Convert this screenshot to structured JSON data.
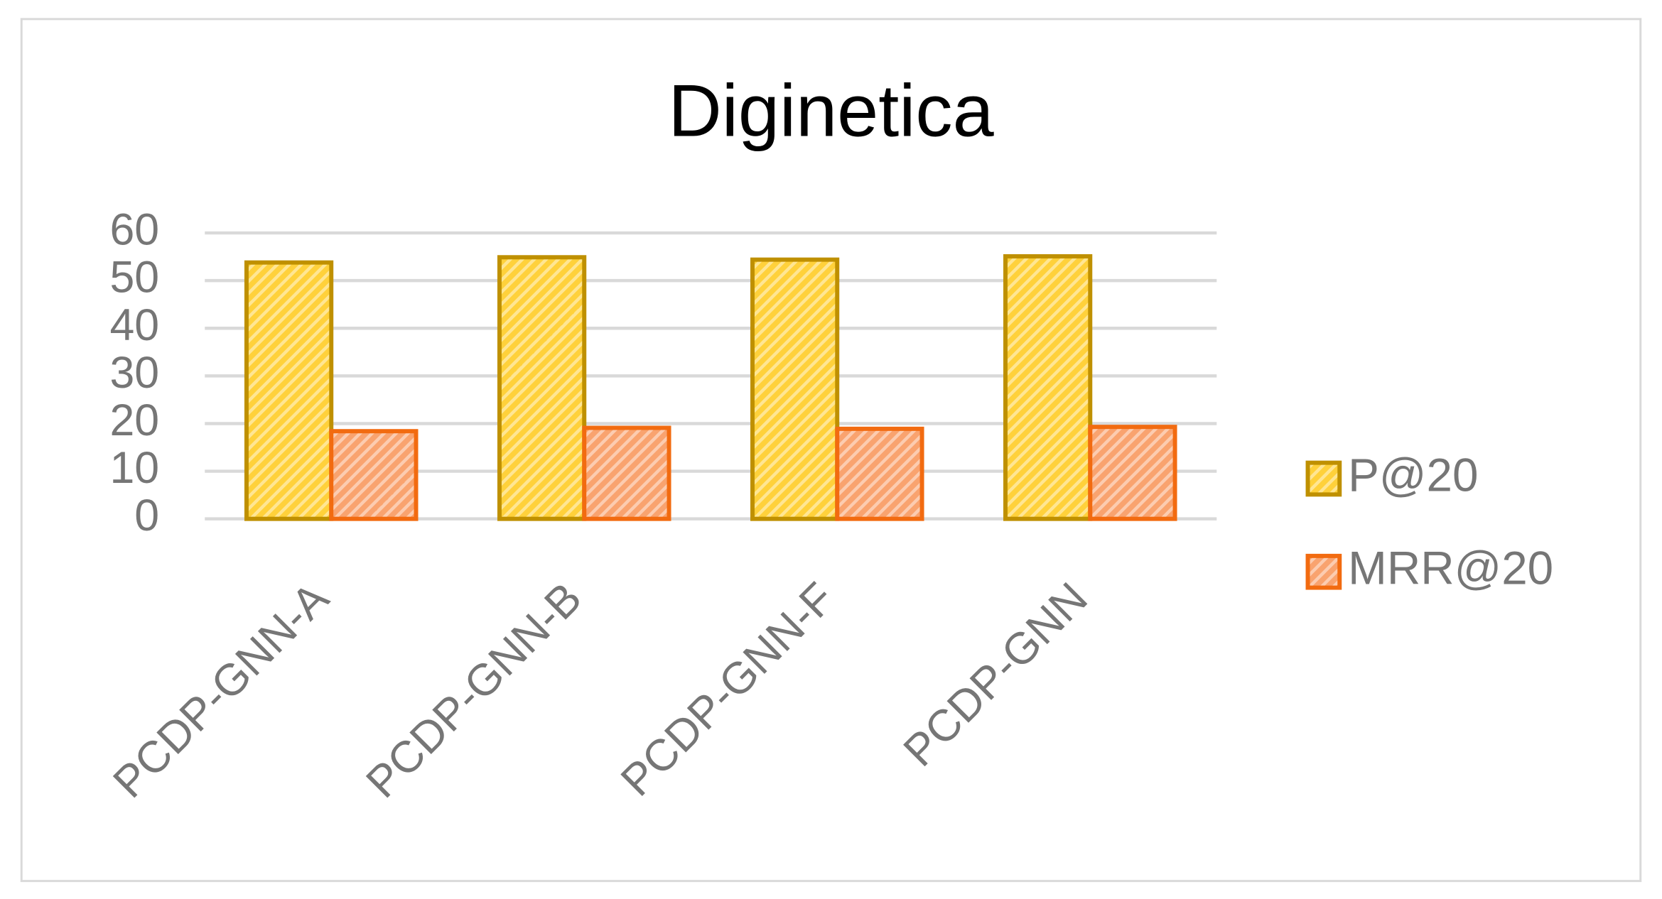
{
  "chart_data": {
    "type": "bar",
    "title": "Diginetica",
    "categories": [
      "PCDP-GNN-A",
      "PCDP-GNN-B",
      "PCDP-GNN-F",
      "PCDP-GNN"
    ],
    "series": [
      {
        "name": "P@20",
        "color": "#ffd13b",
        "edge": "#bf9000",
        "values": [
          53.8,
          54.9,
          54.4,
          55.1
        ]
      },
      {
        "name": "MRR@20",
        "color": "#f9a36f",
        "edge": "#f26b10",
        "values": [
          18.4,
          19.1,
          18.9,
          19.3
        ]
      }
    ],
    "ylim": [
      0,
      60
    ],
    "yticks": [
      0,
      10,
      20,
      30,
      40,
      50,
      60
    ],
    "grid": true,
    "legend": "right"
  }
}
